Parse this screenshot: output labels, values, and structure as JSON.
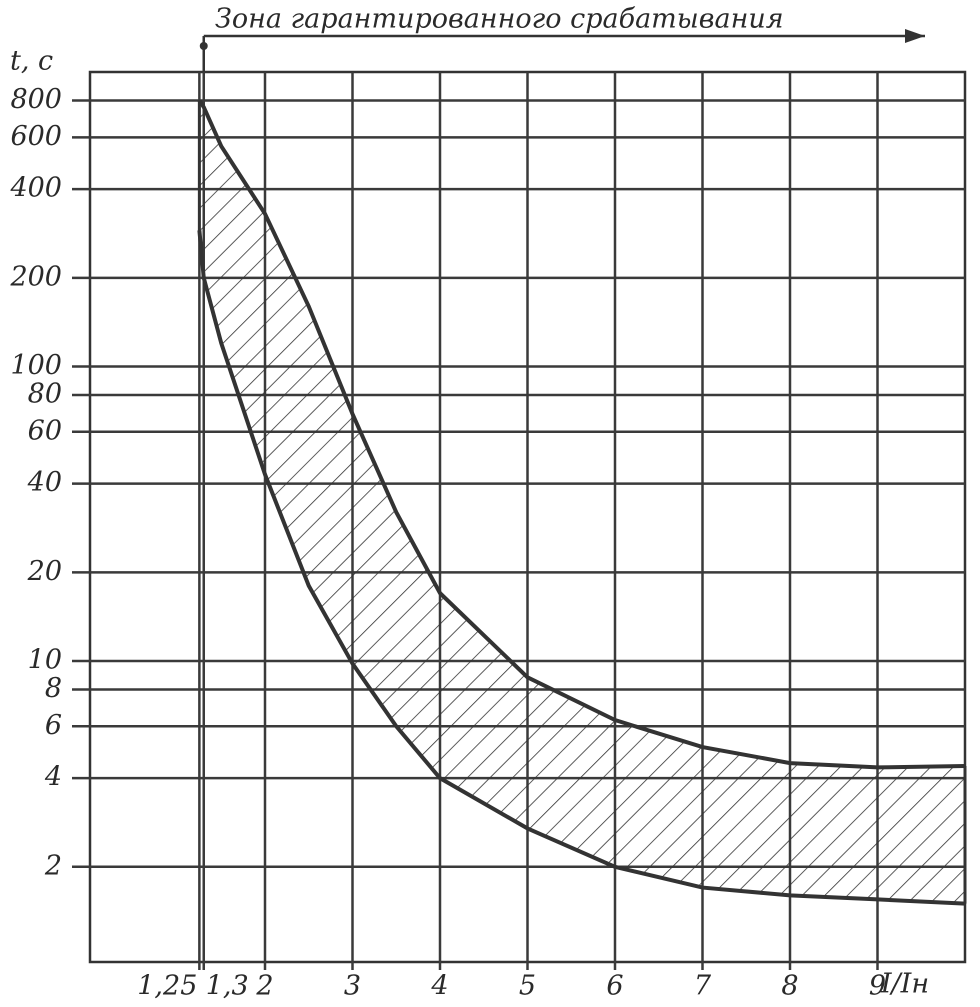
{
  "chart_data": {
    "type": "band",
    "title": "Зона гарантированного срабатывания",
    "x_label": "I/Iн",
    "y_label": "t, с",
    "x": [
      1.25,
      1.3,
      1.5,
      2,
      2.5,
      3,
      3.5,
      4,
      5,
      6,
      7,
      8,
      9,
      10
    ],
    "series": [
      {
        "color": "#333333",
        "values": [
          800,
          760,
          560,
          330,
          160,
          69,
          32,
          17,
          8.8,
          6.3,
          5.1,
          4.5,
          4.35,
          4.4
        ]
      },
      {
        "color": "#333333",
        "values": [
          290,
          200,
          120,
          43,
          18,
          9.8,
          6,
          4,
          2.7,
          2,
          1.7,
          1.6,
          1.55,
          1.5
        ]
      }
    ],
    "xlim": [
      0,
      10
    ],
    "ylim": [
      0.95,
      1000
    ],
    "log_y": true,
    "grid": true,
    "xticks": [
      {
        "value": 1.25,
        "label": "1,25"
      },
      {
        "value": 1.3,
        "label": "1,3"
      },
      2,
      3,
      4,
      5,
      6,
      7,
      8,
      9
    ],
    "yticks": [
      2,
      4,
      6,
      8,
      10,
      20,
      40,
      60,
      80,
      100,
      200,
      400,
      600,
      800
    ]
  }
}
